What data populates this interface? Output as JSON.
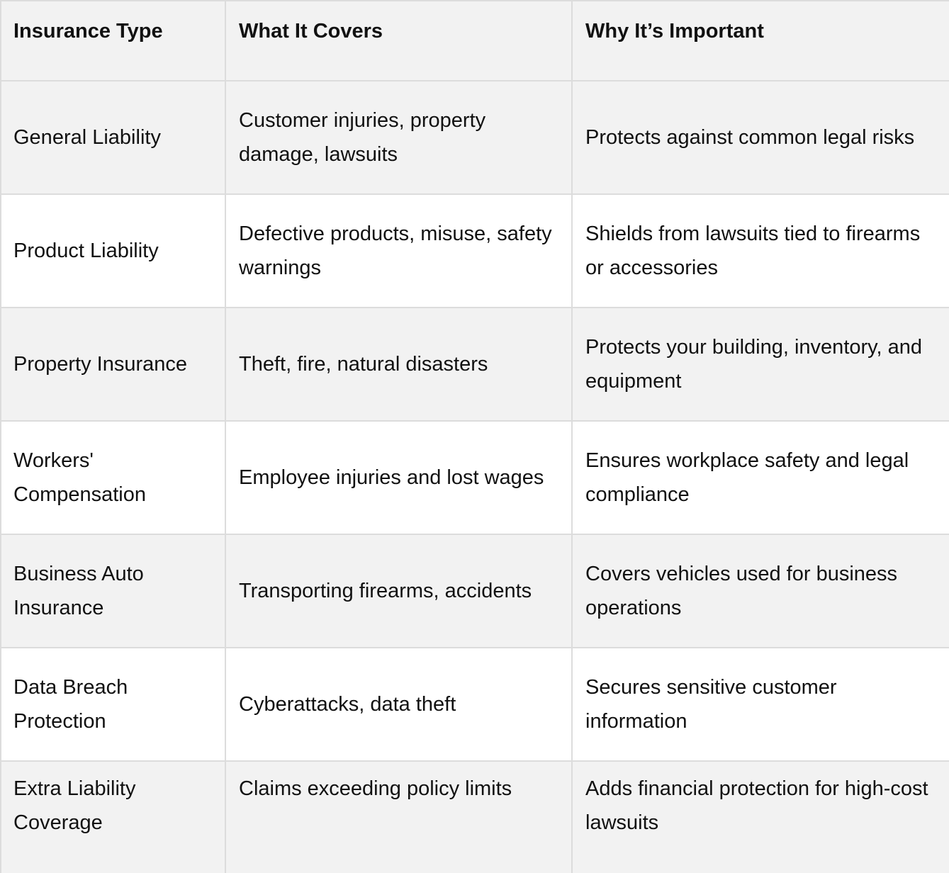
{
  "table": {
    "headers": [
      "Insurance Type",
      "What It Covers",
      "Why It’s Important"
    ],
    "rows": [
      [
        "General Liability",
        "Customer injuries, property damage, lawsuits",
        "Protects against common legal risks"
      ],
      [
        "Product Liability",
        "Defective products, misuse, safety warnings",
        "Shields from lawsuits tied to firearms or accessories"
      ],
      [
        "Property Insurance",
        "Theft, fire, natural disasters",
        "Protects your building, inventory, and equipment"
      ],
      [
        "Workers' Compensation",
        "Employee injuries and lost wages",
        "Ensures workplace safety and legal compliance"
      ],
      [
        "Business Auto Insurance",
        "Transporting firearms, accidents",
        "Covers vehicles used for business operations"
      ],
      [
        "Data Breach Protection",
        "Cyberattacks, data theft",
        "Secures sensitive customer information"
      ],
      [
        "Extra Liability Coverage",
        "Claims exceeding policy limits",
        "Adds financial protection for high-cost lawsuits"
      ]
    ]
  },
  "colors": {
    "shaded_row": "#f2f2f2",
    "plain_row": "#ffffff",
    "border": "#dcdcdc",
    "text": "#111111"
  }
}
